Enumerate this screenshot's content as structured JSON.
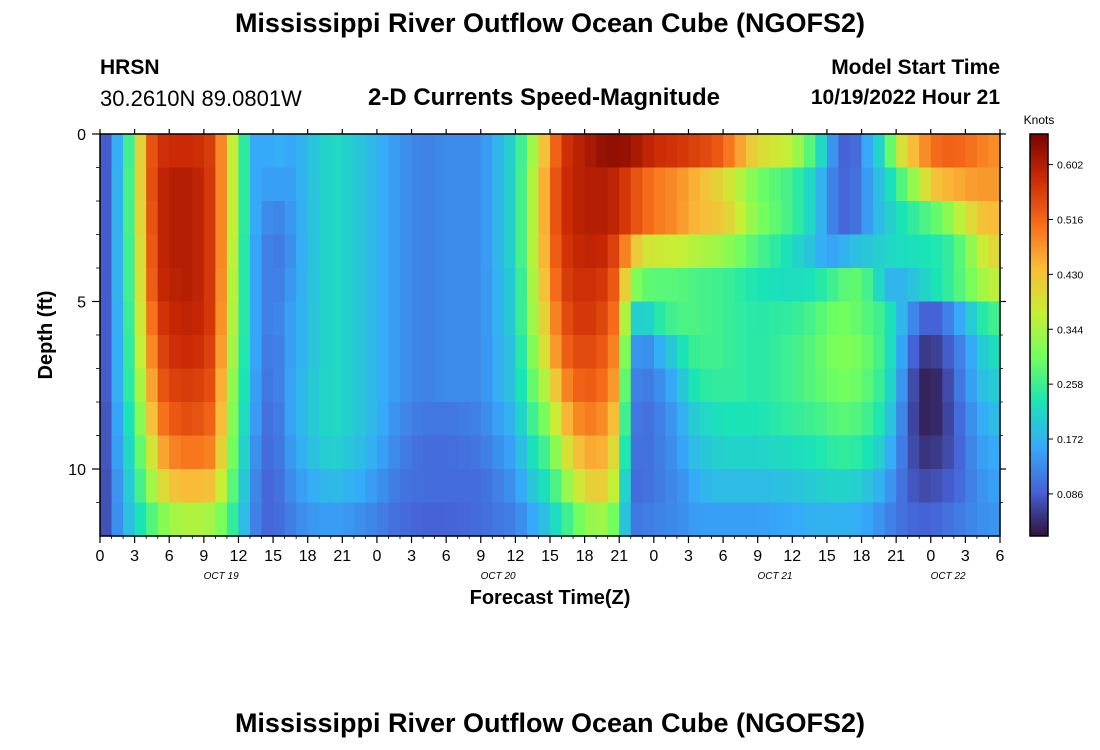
{
  "header": {
    "title": "Mississippi River Outflow Ocean Cube (NGOFS2)",
    "station_name": "HRSN",
    "station_coords": "30.2610N  89.0801W",
    "product": "2-D Currents Speed-Magnitude",
    "model_start_label": "Model Start Time",
    "model_start_value": "10/19/2022 Hour 21"
  },
  "footer": {
    "title": "Mississippi River Outflow Ocean Cube (NGOFS2)"
  },
  "colors": {
    "colormap": [
      "#30123b",
      "#4662d7",
      "#36aaf9",
      "#1ae4b6",
      "#72fe5e",
      "#c7ef34",
      "#fabb39",
      "#f66b19",
      "#cb2a04",
      "#7a0403"
    ]
  },
  "chart_data": {
    "type": "heatmap",
    "xlabel": "Forecast Time(Z)",
    "ylabel": "Depth (ft)",
    "x_ticks": [
      "0",
      "3",
      "6",
      "9",
      "12",
      "15",
      "18",
      "21",
      "0",
      "3",
      "6",
      "9",
      "12",
      "15",
      "18",
      "21",
      "0",
      "3",
      "6",
      "9",
      "12",
      "15",
      "18",
      "21",
      "0",
      "3",
      "6"
    ],
    "date_labels": [
      "OCT 19",
      "OCT 20",
      "OCT 21",
      "OCT 22"
    ],
    "x_range_hours": [
      0,
      78
    ],
    "y_ticks": [
      "0",
      "5",
      "10"
    ],
    "y_range_ft": [
      0,
      12
    ],
    "colorbar_label": "Knots",
    "colorbar_ticks": [
      "0.602",
      "0.516",
      "0.430",
      "0.344",
      "0.258",
      "0.172",
      "0.086"
    ],
    "value_range": [
      0.02,
      0.65
    ],
    "depth_levels_ft": [
      0.5,
      1.5,
      2.5,
      3.5,
      4.5,
      5.5,
      6.5,
      7.5,
      8.5,
      9.5,
      10.5,
      11.5
    ],
    "anchor_hours": [
      0,
      1,
      2,
      3,
      4,
      5,
      6,
      7,
      8,
      9,
      10,
      11,
      12,
      13,
      14,
      15,
      16,
      18,
      20,
      22,
      24,
      26,
      28,
      30,
      33,
      36,
      37,
      38,
      39,
      40,
      41,
      42,
      43,
      44,
      45,
      46,
      47,
      48,
      50,
      51,
      52,
      53,
      54,
      55,
      57,
      60,
      62,
      63,
      64,
      65,
      66,
      67,
      68,
      69,
      70,
      71,
      72,
      73,
      74,
      75,
      76,
      77
    ],
    "depth_rows_knots": [
      [
        0.04,
        0.13,
        0.2,
        0.32,
        0.5,
        0.57,
        0.58,
        0.58,
        0.58,
        0.57,
        0.55,
        0.42,
        0.31,
        0.18,
        0.14,
        0.18,
        0.15,
        0.18,
        0.22,
        0.2,
        0.17,
        0.14,
        0.12,
        0.13,
        0.13,
        0.22,
        0.3,
        0.38,
        0.48,
        0.56,
        0.59,
        0.6,
        0.62,
        0.63,
        0.63,
        0.62,
        0.6,
        0.58,
        0.57,
        0.56,
        0.55,
        0.54,
        0.52,
        0.48,
        0.4,
        0.36,
        0.25,
        0.18,
        0.1,
        0.08,
        0.12,
        0.2,
        0.22,
        0.36,
        0.42,
        0.46,
        0.5,
        0.52,
        0.52,
        0.51,
        0.5,
        0.48
      ],
      [
        0.04,
        0.13,
        0.21,
        0.32,
        0.5,
        0.58,
        0.6,
        0.6,
        0.6,
        0.58,
        0.55,
        0.42,
        0.31,
        0.18,
        0.14,
        0.16,
        0.14,
        0.18,
        0.22,
        0.2,
        0.17,
        0.14,
        0.12,
        0.13,
        0.13,
        0.22,
        0.31,
        0.4,
        0.5,
        0.57,
        0.59,
        0.6,
        0.6,
        0.6,
        0.58,
        0.55,
        0.52,
        0.5,
        0.48,
        0.46,
        0.44,
        0.42,
        0.4,
        0.37,
        0.3,
        0.26,
        0.2,
        0.14,
        0.1,
        0.09,
        0.12,
        0.17,
        0.2,
        0.25,
        0.3,
        0.36,
        0.42,
        0.44,
        0.45,
        0.46,
        0.47,
        0.47
      ],
      [
        0.04,
        0.13,
        0.21,
        0.32,
        0.49,
        0.58,
        0.6,
        0.6,
        0.6,
        0.58,
        0.55,
        0.42,
        0.31,
        0.18,
        0.14,
        0.12,
        0.13,
        0.18,
        0.22,
        0.2,
        0.17,
        0.14,
        0.12,
        0.13,
        0.13,
        0.22,
        0.31,
        0.4,
        0.5,
        0.57,
        0.59,
        0.6,
        0.6,
        0.6,
        0.58,
        0.55,
        0.52,
        0.5,
        0.48,
        0.45,
        0.44,
        0.43,
        0.42,
        0.39,
        0.31,
        0.26,
        0.2,
        0.14,
        0.1,
        0.09,
        0.12,
        0.17,
        0.19,
        0.22,
        0.24,
        0.26,
        0.28,
        0.3,
        0.34,
        0.38,
        0.42,
        0.44
      ],
      [
        0.04,
        0.13,
        0.21,
        0.31,
        0.48,
        0.58,
        0.6,
        0.6,
        0.6,
        0.58,
        0.55,
        0.42,
        0.3,
        0.18,
        0.13,
        0.11,
        0.12,
        0.18,
        0.22,
        0.2,
        0.17,
        0.14,
        0.12,
        0.13,
        0.13,
        0.22,
        0.31,
        0.4,
        0.49,
        0.56,
        0.58,
        0.59,
        0.59,
        0.58,
        0.53,
        0.45,
        0.39,
        0.38,
        0.37,
        0.36,
        0.35,
        0.34,
        0.33,
        0.31,
        0.27,
        0.22,
        0.18,
        0.15,
        0.16,
        0.18,
        0.19,
        0.2,
        0.21,
        0.22,
        0.22,
        0.23,
        0.23,
        0.24,
        0.26,
        0.3,
        0.35,
        0.4
      ],
      [
        0.04,
        0.13,
        0.21,
        0.31,
        0.47,
        0.58,
        0.59,
        0.6,
        0.6,
        0.58,
        0.55,
        0.41,
        0.3,
        0.18,
        0.13,
        0.11,
        0.13,
        0.18,
        0.22,
        0.2,
        0.17,
        0.14,
        0.12,
        0.13,
        0.13,
        0.21,
        0.3,
        0.39,
        0.47,
        0.55,
        0.57,
        0.58,
        0.57,
        0.56,
        0.5,
        0.33,
        0.29,
        0.28,
        0.28,
        0.27,
        0.27,
        0.26,
        0.26,
        0.25,
        0.23,
        0.22,
        0.23,
        0.25,
        0.27,
        0.29,
        0.28,
        0.25,
        0.18,
        0.17,
        0.18,
        0.2,
        0.22,
        0.24,
        0.26,
        0.29,
        0.32,
        0.36
      ],
      [
        0.04,
        0.13,
        0.2,
        0.31,
        0.45,
        0.56,
        0.58,
        0.59,
        0.59,
        0.58,
        0.55,
        0.4,
        0.3,
        0.18,
        0.13,
        0.11,
        0.14,
        0.18,
        0.22,
        0.2,
        0.17,
        0.14,
        0.12,
        0.13,
        0.13,
        0.21,
        0.3,
        0.37,
        0.45,
        0.53,
        0.56,
        0.57,
        0.56,
        0.54,
        0.48,
        0.22,
        0.19,
        0.23,
        0.27,
        0.27,
        0.27,
        0.26,
        0.26,
        0.25,
        0.24,
        0.25,
        0.27,
        0.29,
        0.3,
        0.3,
        0.28,
        0.27,
        0.25,
        0.2,
        0.15,
        0.1,
        0.08,
        0.1,
        0.14,
        0.18,
        0.22,
        0.26
      ],
      [
        0.04,
        0.13,
        0.2,
        0.3,
        0.43,
        0.54,
        0.57,
        0.58,
        0.58,
        0.57,
        0.54,
        0.39,
        0.29,
        0.18,
        0.13,
        0.1,
        0.14,
        0.18,
        0.22,
        0.2,
        0.17,
        0.14,
        0.12,
        0.13,
        0.13,
        0.2,
        0.28,
        0.35,
        0.43,
        0.51,
        0.54,
        0.55,
        0.54,
        0.52,
        0.46,
        0.16,
        0.12,
        0.15,
        0.21,
        0.25,
        0.26,
        0.26,
        0.26,
        0.25,
        0.24,
        0.26,
        0.28,
        0.3,
        0.31,
        0.31,
        0.3,
        0.28,
        0.25,
        0.19,
        0.12,
        0.06,
        0.05,
        0.07,
        0.1,
        0.14,
        0.18,
        0.22
      ],
      [
        0.04,
        0.13,
        0.2,
        0.29,
        0.4,
        0.52,
        0.55,
        0.56,
        0.56,
        0.55,
        0.53,
        0.37,
        0.28,
        0.18,
        0.12,
        0.1,
        0.14,
        0.19,
        0.22,
        0.2,
        0.17,
        0.14,
        0.12,
        0.13,
        0.13,
        0.2,
        0.26,
        0.32,
        0.38,
        0.47,
        0.51,
        0.53,
        0.52,
        0.5,
        0.44,
        0.13,
        0.11,
        0.12,
        0.17,
        0.22,
        0.24,
        0.25,
        0.25,
        0.25,
        0.24,
        0.26,
        0.28,
        0.29,
        0.3,
        0.3,
        0.29,
        0.27,
        0.24,
        0.18,
        0.1,
        0.04,
        0.03,
        0.05,
        0.09,
        0.13,
        0.17,
        0.2
      ],
      [
        0.04,
        0.12,
        0.19,
        0.27,
        0.37,
        0.49,
        0.52,
        0.54,
        0.54,
        0.53,
        0.51,
        0.36,
        0.27,
        0.17,
        0.12,
        0.09,
        0.14,
        0.19,
        0.22,
        0.2,
        0.17,
        0.13,
        0.11,
        0.11,
        0.12,
        0.18,
        0.24,
        0.28,
        0.33,
        0.42,
        0.47,
        0.5,
        0.49,
        0.47,
        0.4,
        0.12,
        0.1,
        0.11,
        0.15,
        0.19,
        0.21,
        0.22,
        0.23,
        0.23,
        0.23,
        0.25,
        0.26,
        0.27,
        0.28,
        0.28,
        0.27,
        0.25,
        0.22,
        0.16,
        0.09,
        0.04,
        0.03,
        0.05,
        0.08,
        0.12,
        0.15,
        0.18
      ],
      [
        0.04,
        0.12,
        0.18,
        0.25,
        0.33,
        0.44,
        0.48,
        0.5,
        0.5,
        0.5,
        0.48,
        0.34,
        0.26,
        0.16,
        0.11,
        0.09,
        0.13,
        0.18,
        0.21,
        0.19,
        0.16,
        0.12,
        0.1,
        0.1,
        0.11,
        0.16,
        0.21,
        0.24,
        0.28,
        0.36,
        0.42,
        0.45,
        0.46,
        0.44,
        0.36,
        0.11,
        0.1,
        0.11,
        0.14,
        0.17,
        0.19,
        0.2,
        0.21,
        0.21,
        0.21,
        0.22,
        0.23,
        0.24,
        0.25,
        0.25,
        0.24,
        0.22,
        0.19,
        0.14,
        0.09,
        0.05,
        0.05,
        0.06,
        0.08,
        0.11,
        0.14,
        0.16
      ],
      [
        0.04,
        0.11,
        0.17,
        0.23,
        0.3,
        0.38,
        0.42,
        0.44,
        0.44,
        0.44,
        0.42,
        0.32,
        0.24,
        0.15,
        0.1,
        0.09,
        0.12,
        0.16,
        0.18,
        0.17,
        0.14,
        0.11,
        0.1,
        0.1,
        0.1,
        0.14,
        0.18,
        0.21,
        0.24,
        0.3,
        0.36,
        0.4,
        0.42,
        0.41,
        0.32,
        0.1,
        0.1,
        0.11,
        0.13,
        0.15,
        0.17,
        0.18,
        0.18,
        0.18,
        0.18,
        0.19,
        0.2,
        0.21,
        0.21,
        0.21,
        0.2,
        0.18,
        0.16,
        0.12,
        0.09,
        0.07,
        0.07,
        0.08,
        0.09,
        0.11,
        0.13,
        0.15
      ],
      [
        0.04,
        0.11,
        0.16,
        0.21,
        0.25,
        0.3,
        0.33,
        0.35,
        0.35,
        0.35,
        0.33,
        0.28,
        0.22,
        0.14,
        0.1,
        0.09,
        0.11,
        0.14,
        0.15,
        0.14,
        0.12,
        0.1,
        0.09,
        0.09,
        0.1,
        0.12,
        0.15,
        0.17,
        0.2,
        0.24,
        0.28,
        0.32,
        0.34,
        0.33,
        0.27,
        0.11,
        0.11,
        0.12,
        0.13,
        0.14,
        0.15,
        0.15,
        0.15,
        0.15,
        0.15,
        0.16,
        0.17,
        0.17,
        0.17,
        0.17,
        0.16,
        0.15,
        0.13,
        0.11,
        0.1,
        0.09,
        0.09,
        0.1,
        0.11,
        0.12,
        0.13,
        0.14
      ]
    ]
  }
}
